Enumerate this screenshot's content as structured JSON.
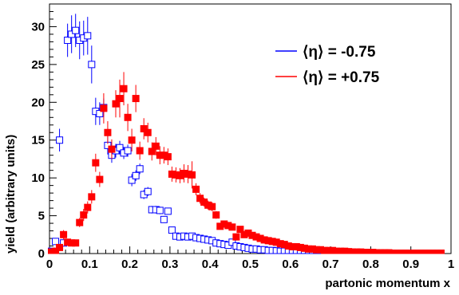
{
  "chart_data": {
    "type": "scatter",
    "xlabel": "partonic momentum x",
    "ylabel": "yield (arbitrary units)",
    "xlim": [
      0,
      1
    ],
    "ylim": [
      0,
      33
    ],
    "x_ticks": [
      "0",
      "0.1",
      "0.2",
      "0.3",
      "0.4",
      "0.5",
      "0.6",
      "0.7",
      "0.8",
      "0.9",
      "1"
    ],
    "y_ticks": [
      "0",
      "5",
      "10",
      "15",
      "20",
      "25",
      "30"
    ],
    "legend_position": "top-right",
    "series": [
      {
        "name": "⟨η⟩ = -0.75",
        "color": "#0000ff",
        "marker": "open-square",
        "points": [
          [
            0.005,
            0.3,
            0.3
          ],
          [
            0.015,
            1.6,
            0.4
          ],
          [
            0.025,
            15.0,
            1.5
          ],
          [
            0.035,
            1.4,
            0.4
          ],
          [
            0.045,
            28.2,
            2.2
          ],
          [
            0.055,
            29.0,
            2.5
          ],
          [
            0.065,
            29.5,
            2.2
          ],
          [
            0.075,
            28.2,
            2.5
          ],
          [
            0.085,
            28.5,
            2.3
          ],
          [
            0.095,
            28.8,
            2.5
          ],
          [
            0.105,
            25.0,
            2.5
          ],
          [
            0.115,
            18.8,
            1.8
          ],
          [
            0.125,
            18.5,
            1.5
          ],
          [
            0.135,
            19.3,
            1.2
          ],
          [
            0.145,
            14.3,
            1.2
          ],
          [
            0.155,
            13.0,
            1.0
          ],
          [
            0.165,
            13.6,
            0.9
          ],
          [
            0.175,
            14.0,
            0.9
          ],
          [
            0.185,
            13.3,
            0.8
          ],
          [
            0.195,
            13.6,
            0.8
          ],
          [
            0.205,
            9.7,
            0.8
          ],
          [
            0.215,
            10.3,
            0.7
          ],
          [
            0.225,
            11.2,
            0.7
          ],
          [
            0.235,
            7.8,
            0.6
          ],
          [
            0.245,
            8.2,
            0.6
          ],
          [
            0.255,
            5.8,
            0.5
          ],
          [
            0.265,
            5.8,
            0.5
          ],
          [
            0.275,
            5.7,
            0.5
          ],
          [
            0.285,
            4.5,
            0.4
          ],
          [
            0.295,
            5.6,
            0.4
          ],
          [
            0.305,
            3.1,
            0.4
          ],
          [
            0.315,
            2.3,
            0.3
          ],
          [
            0.325,
            2.2,
            0.3
          ],
          [
            0.335,
            2.3,
            0.3
          ],
          [
            0.345,
            2.2,
            0.3
          ],
          [
            0.355,
            2.3,
            0.3
          ],
          [
            0.365,
            2.1,
            0.3
          ],
          [
            0.375,
            2.0,
            0.3
          ],
          [
            0.385,
            1.9,
            0.3
          ],
          [
            0.395,
            1.8,
            0.3
          ],
          [
            0.405,
            1.7,
            0.3
          ],
          [
            0.415,
            1.4,
            0.2
          ],
          [
            0.425,
            1.3,
            0.2
          ],
          [
            0.435,
            1.2,
            0.2
          ],
          [
            0.445,
            1.1,
            0.2
          ],
          [
            0.455,
            1.5,
            0.2
          ],
          [
            0.465,
            1.0,
            0.2
          ],
          [
            0.475,
            0.9,
            0.2
          ],
          [
            0.485,
            0.8,
            0.2
          ],
          [
            0.495,
            0.7,
            0.2
          ],
          [
            0.505,
            0.6,
            0.2
          ],
          [
            0.515,
            0.6,
            0.2
          ],
          [
            0.525,
            0.5,
            0.15
          ],
          [
            0.535,
            0.5,
            0.15
          ],
          [
            0.545,
            0.4,
            0.15
          ],
          [
            0.555,
            0.4,
            0.15
          ],
          [
            0.565,
            0.35,
            0.1
          ],
          [
            0.575,
            0.3,
            0.1
          ],
          [
            0.585,
            0.3,
            0.1
          ],
          [
            0.595,
            0.25,
            0.1
          ],
          [
            0.605,
            0.2,
            0.1
          ],
          [
            0.615,
            0.2,
            0.1
          ],
          [
            0.625,
            0.15,
            0.1
          ],
          [
            0.635,
            0.15,
            0.1
          ],
          [
            0.645,
            0.1,
            0.1
          ],
          [
            0.655,
            0.1,
            0.1
          ],
          [
            0.665,
            0.1,
            0.1
          ],
          [
            0.675,
            0.1,
            0.1
          ],
          [
            0.685,
            0.05,
            0.05
          ],
          [
            0.695,
            0.05,
            0.05
          ],
          [
            0.705,
            0.05,
            0.05
          ],
          [
            0.715,
            0.05,
            0.05
          ],
          [
            0.725,
            0.05,
            0.05
          ],
          [
            0.735,
            0.05,
            0.05
          ]
        ]
      },
      {
        "name": "⟨η⟩ = +0.75",
        "color": "#ff0000",
        "marker": "filled-square",
        "points": [
          [
            0.005,
            0.2,
            0.2
          ],
          [
            0.015,
            0.3,
            0.3
          ],
          [
            0.025,
            0.8,
            0.4
          ],
          [
            0.035,
            2.5,
            0.6
          ],
          [
            0.045,
            1.5,
            0.4
          ],
          [
            0.055,
            1.4,
            0.4
          ],
          [
            0.065,
            1.4,
            0.4
          ],
          [
            0.075,
            4.1,
            0.6
          ],
          [
            0.085,
            5.1,
            0.8
          ],
          [
            0.095,
            6.1,
            0.8
          ],
          [
            0.105,
            7.5,
            0.9
          ],
          [
            0.115,
            12.0,
            1.2
          ],
          [
            0.125,
            9.8,
            1.0
          ],
          [
            0.135,
            19.2,
            2.0
          ],
          [
            0.145,
            16.0,
            1.5
          ],
          [
            0.155,
            13.8,
            1.3
          ],
          [
            0.165,
            19.8,
            1.8
          ],
          [
            0.175,
            20.5,
            2.5
          ],
          [
            0.185,
            21.8,
            2.2
          ],
          [
            0.195,
            18.0,
            1.8
          ],
          [
            0.205,
            15.0,
            1.5
          ],
          [
            0.215,
            20.5,
            1.8
          ],
          [
            0.225,
            13.6,
            1.2
          ],
          [
            0.235,
            16.5,
            1.4
          ],
          [
            0.245,
            16.0,
            1.3
          ],
          [
            0.255,
            13.5,
            1.2
          ],
          [
            0.265,
            14.2,
            1.2
          ],
          [
            0.275,
            13.0,
            1.2
          ],
          [
            0.285,
            13.0,
            1.1
          ],
          [
            0.295,
            12.8,
            1.1
          ],
          [
            0.305,
            10.5,
            1.0
          ],
          [
            0.315,
            10.4,
            1.0
          ],
          [
            0.325,
            10.3,
            1.0
          ],
          [
            0.335,
            10.6,
            1.2
          ],
          [
            0.345,
            10.5,
            1.2
          ],
          [
            0.355,
            10.4,
            1.8
          ],
          [
            0.365,
            8.5,
            0.8
          ],
          [
            0.375,
            7.3,
            0.7
          ],
          [
            0.385,
            6.8,
            0.6
          ],
          [
            0.395,
            6.4,
            0.6
          ],
          [
            0.405,
            6.2,
            0.6
          ],
          [
            0.415,
            5.1,
            0.5
          ],
          [
            0.425,
            3.6,
            0.4
          ],
          [
            0.435,
            3.9,
            0.4
          ],
          [
            0.445,
            3.7,
            0.4
          ],
          [
            0.455,
            3.5,
            0.4
          ],
          [
            0.465,
            2.2,
            0.3
          ],
          [
            0.475,
            3.2,
            0.4
          ],
          [
            0.485,
            2.5,
            0.3
          ],
          [
            0.495,
            2.7,
            0.3
          ],
          [
            0.505,
            2.4,
            0.3
          ],
          [
            0.515,
            2.2,
            0.3
          ],
          [
            0.525,
            2.0,
            0.3
          ],
          [
            0.535,
            1.8,
            0.3
          ],
          [
            0.545,
            1.7,
            0.3
          ],
          [
            0.555,
            1.6,
            0.3
          ],
          [
            0.565,
            1.5,
            0.3
          ],
          [
            0.575,
            1.3,
            0.2
          ],
          [
            0.585,
            1.2,
            0.2
          ],
          [
            0.595,
            1.0,
            0.2
          ],
          [
            0.605,
            0.9,
            0.2
          ],
          [
            0.615,
            0.9,
            0.2
          ],
          [
            0.625,
            0.8,
            0.2
          ],
          [
            0.635,
            0.7,
            0.2
          ],
          [
            0.645,
            0.6,
            0.2
          ],
          [
            0.655,
            0.6,
            0.2
          ],
          [
            0.665,
            0.5,
            0.15
          ],
          [
            0.675,
            0.5,
            0.15
          ],
          [
            0.685,
            0.4,
            0.15
          ],
          [
            0.695,
            0.4,
            0.15
          ],
          [
            0.705,
            0.4,
            0.15
          ],
          [
            0.715,
            0.3,
            0.1
          ],
          [
            0.725,
            0.3,
            0.1
          ],
          [
            0.735,
            0.3,
            0.1
          ],
          [
            0.745,
            0.25,
            0.1
          ],
          [
            0.755,
            0.2,
            0.1
          ],
          [
            0.765,
            0.2,
            0.1
          ],
          [
            0.775,
            0.2,
            0.1
          ],
          [
            0.785,
            0.15,
            0.1
          ],
          [
            0.795,
            0.15,
            0.1
          ],
          [
            0.805,
            0.15,
            0.1
          ],
          [
            0.815,
            0.1,
            0.1
          ],
          [
            0.825,
            0.1,
            0.1
          ],
          [
            0.835,
            0.1,
            0.1
          ],
          [
            0.845,
            0.1,
            0.1
          ],
          [
            0.855,
            0.05,
            0.05
          ],
          [
            0.865,
            0.05,
            0.05
          ],
          [
            0.875,
            0.05,
            0.05
          ],
          [
            0.885,
            0.05,
            0.05
          ],
          [
            0.895,
            0.05,
            0.05
          ],
          [
            0.905,
            0.05,
            0.05
          ],
          [
            0.915,
            0.05,
            0.05
          ],
          [
            0.925,
            0.05,
            0.05
          ],
          [
            0.935,
            0.05,
            0.05
          ],
          [
            0.945,
            0.05,
            0.05
          ],
          [
            0.955,
            0.05,
            0.05
          ],
          [
            0.965,
            0.05,
            0.05
          ],
          [
            0.975,
            0.05,
            0.05
          ]
        ]
      }
    ]
  }
}
